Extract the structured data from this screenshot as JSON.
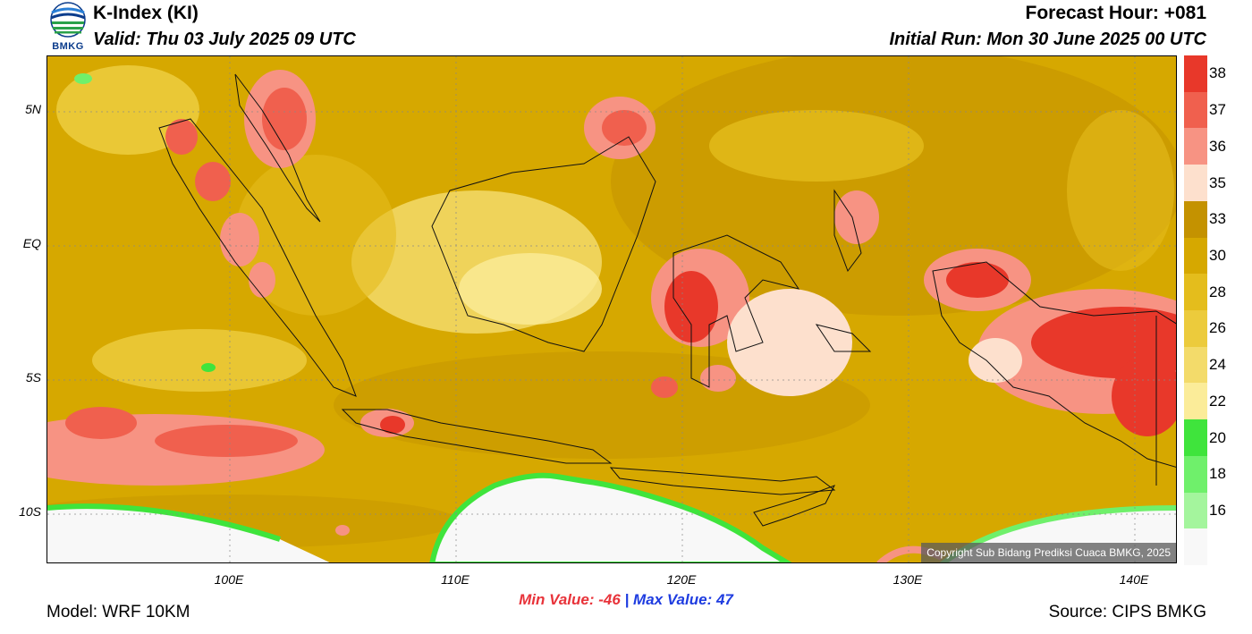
{
  "header": {
    "title": "K-Index (KI)",
    "valid": "Valid: Thu 03 July 2025 09 UTC",
    "forecast_hour": "Forecast Hour: +081",
    "initial_run": "Initial Run: Mon 30 June 2025 00 UTC",
    "logo_text": "BMKG"
  },
  "map": {
    "copyright": "Copyright Sub Bidang Prediksi Cuaca BMKG, 2025",
    "lat_labels": [
      "5N",
      "EQ",
      "5S",
      "10S"
    ],
    "lon_labels": [
      "100E",
      "110E",
      "120E",
      "130E",
      "140E"
    ]
  },
  "legend": {
    "labels": [
      "38",
      "37",
      "36",
      "35",
      "33",
      "30",
      "28",
      "26",
      "24",
      "22",
      "20",
      "18",
      "16"
    ],
    "colors": [
      "#e8382a",
      "#f0604e",
      "#f79383",
      "#fde0cd",
      "#c49200",
      "#d6a800",
      "#e4bd1c",
      "#eccb3c",
      "#f3db6a",
      "#fbec99",
      "#3fe43c",
      "#6ff06b",
      "#a4f59d",
      "#f8f8f8"
    ]
  },
  "footer": {
    "min_label": "Min Value: -46",
    "separator": "|",
    "max_label": "Max Value:  47",
    "model": "Model: WRF 10KM",
    "source": "Source: CIPS BMKG"
  }
}
